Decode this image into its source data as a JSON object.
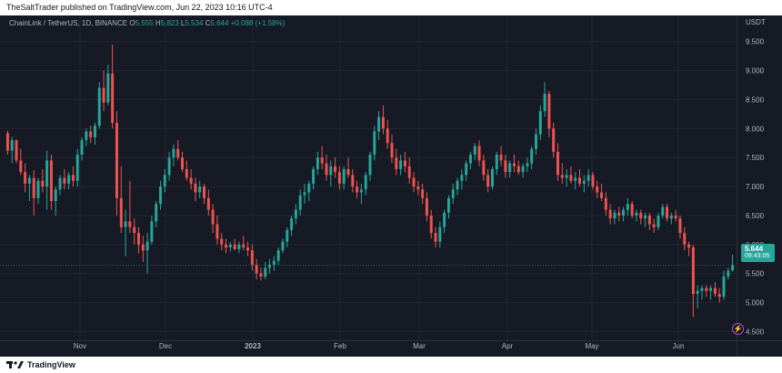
{
  "header": {
    "publisher": "TheSaltTrader published on TradingView.com, Jun 22, 2023 10:16 UTC-4"
  },
  "legend": {
    "symbol": "ChainLink / TetherUS, 1D, BINANCE",
    "o_label": "O",
    "o_value": "5.555",
    "h_label": "H",
    "h_value": "5.823",
    "l_label": "L",
    "l_value": "5.534",
    "c_label": "C",
    "c_value": "5.644",
    "change": "+0.088 (+1.58%)"
  },
  "currency": "USDT",
  "price_tag": {
    "price": "5.644",
    "countdown": "09:43:06"
  },
  "footer": {
    "brand": "TradingView"
  },
  "icons": {
    "lightning": "lightning-icon",
    "logo": "tradingview-logo-icon"
  },
  "colors": {
    "up": "#26a69a",
    "down": "#ef5350",
    "background": "#161a25",
    "grid": "#232632",
    "axis_text": "#b2b5be"
  },
  "chart_data": {
    "type": "candlestick",
    "title": "ChainLink / TetherUS, 1D, BINANCE",
    "ylim": [
      4.35,
      9.95
    ],
    "y_ticks": [
      "9.500",
      "9.000",
      "8.500",
      "8.000",
      "7.500",
      "7.000",
      "6.500",
      "6.000",
      "5.500",
      "5.000",
      "4.500"
    ],
    "x_ticks": [
      "Nov",
      "Dec",
      "2023",
      "Feb",
      "Mar",
      "Apr",
      "May",
      "Jun"
    ],
    "last_price": 5.644,
    "ohlc": [
      [
        7.92,
        7.96,
        7.55,
        7.62
      ],
      [
        7.62,
        7.86,
        7.4,
        7.8
      ],
      [
        7.8,
        7.81,
        7.4,
        7.45
      ],
      [
        7.45,
        7.65,
        7.2,
        7.25
      ],
      [
        7.25,
        7.4,
        6.9,
        7.05
      ],
      [
        7.05,
        7.2,
        6.75,
        7.15
      ],
      [
        7.15,
        7.28,
        6.5,
        6.8
      ],
      [
        6.8,
        7.15,
        6.7,
        7.1
      ],
      [
        7.1,
        7.3,
        6.9,
        7.0
      ],
      [
        7.0,
        7.62,
        6.6,
        7.45
      ],
      [
        7.45,
        7.55,
        6.6,
        6.75
      ],
      [
        6.75,
        7.0,
        6.5,
        6.95
      ],
      [
        6.95,
        7.2,
        6.85,
        7.15
      ],
      [
        7.15,
        7.3,
        6.95,
        7.05
      ],
      [
        7.05,
        7.25,
        6.95,
        7.2
      ],
      [
        7.2,
        7.35,
        7.0,
        7.1
      ],
      [
        7.1,
        7.65,
        7.0,
        7.55
      ],
      [
        7.55,
        7.85,
        7.45,
        7.8
      ],
      [
        7.8,
        8.0,
        7.7,
        7.95
      ],
      [
        7.95,
        8.05,
        7.75,
        7.85
      ],
      [
        7.85,
        8.1,
        7.72,
        8.05
      ],
      [
        8.05,
        8.8,
        8.0,
        8.7
      ],
      [
        8.7,
        9.0,
        8.3,
        8.45
      ],
      [
        8.45,
        9.1,
        8.4,
        8.95
      ],
      [
        8.95,
        9.45,
        8.0,
        8.1
      ],
      [
        8.1,
        8.3,
        6.5,
        6.8
      ],
      [
        6.8,
        7.35,
        6.2,
        6.3
      ],
      [
        6.3,
        6.6,
        5.8,
        6.4
      ],
      [
        6.4,
        7.1,
        6.2,
        6.3
      ],
      [
        6.3,
        6.45,
        6.0,
        6.2
      ],
      [
        6.2,
        6.3,
        5.85,
        6.0
      ],
      [
        6.0,
        6.15,
        5.7,
        5.9
      ],
      [
        5.9,
        6.2,
        5.5,
        6.05
      ],
      [
        6.05,
        6.5,
        6.0,
        6.4
      ],
      [
        6.4,
        6.75,
        6.3,
        6.7
      ],
      [
        6.7,
        7.1,
        6.6,
        7.0
      ],
      [
        7.0,
        7.3,
        6.9,
        7.2
      ],
      [
        7.2,
        7.6,
        7.1,
        7.5
      ],
      [
        7.5,
        7.72,
        7.35,
        7.65
      ],
      [
        7.65,
        7.8,
        7.45,
        7.5
      ],
      [
        7.5,
        7.6,
        7.25,
        7.3
      ],
      [
        7.3,
        7.45,
        7.1,
        7.15
      ],
      [
        7.15,
        7.3,
        6.95,
        7.05
      ],
      [
        7.05,
        7.15,
        6.75,
        6.9
      ],
      [
        6.9,
        7.1,
        6.8,
        7.0
      ],
      [
        7.0,
        7.05,
        6.7,
        6.8
      ],
      [
        6.8,
        6.95,
        6.5,
        6.6
      ],
      [
        6.6,
        6.7,
        6.2,
        6.35
      ],
      [
        6.35,
        6.5,
        6.0,
        6.1
      ],
      [
        6.1,
        6.2,
        5.9,
        6.0
      ],
      [
        6.0,
        6.1,
        5.85,
        5.95
      ],
      [
        5.95,
        6.05,
        5.88,
        6.0
      ],
      [
        6.0,
        6.1,
        5.9,
        5.92
      ],
      [
        5.92,
        6.05,
        5.85,
        6.0
      ],
      [
        6.0,
        6.15,
        5.9,
        5.95
      ],
      [
        5.95,
        6.05,
        5.8,
        5.9
      ],
      [
        5.9,
        6.0,
        5.55,
        5.65
      ],
      [
        5.65,
        5.75,
        5.4,
        5.5
      ],
      [
        5.5,
        5.6,
        5.38,
        5.45
      ],
      [
        5.45,
        5.7,
        5.4,
        5.6
      ],
      [
        5.6,
        5.75,
        5.5,
        5.65
      ],
      [
        5.65,
        5.8,
        5.55,
        5.72
      ],
      [
        5.72,
        5.95,
        5.65,
        5.9
      ],
      [
        5.9,
        6.1,
        5.85,
        6.05
      ],
      [
        6.05,
        6.3,
        5.95,
        6.25
      ],
      [
        6.25,
        6.5,
        6.15,
        6.45
      ],
      [
        6.45,
        6.7,
        6.35,
        6.6
      ],
      [
        6.6,
        6.95,
        6.5,
        6.85
      ],
      [
        6.85,
        7.05,
        6.7,
        6.9
      ],
      [
        6.9,
        7.1,
        6.75,
        7.05
      ],
      [
        7.05,
        7.35,
        6.95,
        7.3
      ],
      [
        7.3,
        7.6,
        7.2,
        7.5
      ],
      [
        7.5,
        7.7,
        7.3,
        7.4
      ],
      [
        7.4,
        7.55,
        7.1,
        7.2
      ],
      [
        7.2,
        7.45,
        7.0,
        7.35
      ],
      [
        7.35,
        7.5,
        7.15,
        7.25
      ],
      [
        7.25,
        7.35,
        6.95,
        7.05
      ],
      [
        7.05,
        7.35,
        6.95,
        7.3
      ],
      [
        7.3,
        7.5,
        7.15,
        7.2
      ],
      [
        7.2,
        7.3,
        6.9,
        7.0
      ],
      [
        7.0,
        7.1,
        6.8,
        6.9
      ],
      [
        6.9,
        7.05,
        6.7,
        6.95
      ],
      [
        6.95,
        7.25,
        6.85,
        7.2
      ],
      [
        7.2,
        7.6,
        7.1,
        7.55
      ],
      [
        7.55,
        8.05,
        7.45,
        7.95
      ],
      [
        7.95,
        8.3,
        7.8,
        8.2
      ],
      [
        8.2,
        8.4,
        7.9,
        8.0
      ],
      [
        8.0,
        8.15,
        7.65,
        7.75
      ],
      [
        7.75,
        7.9,
        7.4,
        7.5
      ],
      [
        7.5,
        7.65,
        7.2,
        7.3
      ],
      [
        7.3,
        7.55,
        7.2,
        7.45
      ],
      [
        7.45,
        7.6,
        7.25,
        7.35
      ],
      [
        7.35,
        7.5,
        7.05,
        7.15
      ],
      [
        7.15,
        7.25,
        6.9,
        7.0
      ],
      [
        7.0,
        7.1,
        6.85,
        6.95
      ],
      [
        6.95,
        7.05,
        6.7,
        6.8
      ],
      [
        6.8,
        6.9,
        6.4,
        6.5
      ],
      [
        6.5,
        6.6,
        6.1,
        6.2
      ],
      [
        6.2,
        6.3,
        5.95,
        6.05
      ],
      [
        6.05,
        6.4,
        5.95,
        6.3
      ],
      [
        6.3,
        6.6,
        6.2,
        6.55
      ],
      [
        6.55,
        6.85,
        6.45,
        6.8
      ],
      [
        6.8,
        7.05,
        6.7,
        6.95
      ],
      [
        6.95,
        7.15,
        6.85,
        7.1
      ],
      [
        7.1,
        7.3,
        6.95,
        7.2
      ],
      [
        7.2,
        7.45,
        7.1,
        7.4
      ],
      [
        7.4,
        7.6,
        7.3,
        7.55
      ],
      [
        7.55,
        7.75,
        7.45,
        7.7
      ],
      [
        7.7,
        7.8,
        7.35,
        7.45
      ],
      [
        7.45,
        7.55,
        7.1,
        7.2
      ],
      [
        7.2,
        7.3,
        6.9,
        7.0
      ],
      [
        7.0,
        7.35,
        6.95,
        7.3
      ],
      [
        7.3,
        7.6,
        7.2,
        7.55
      ],
      [
        7.55,
        7.7,
        7.35,
        7.45
      ],
      [
        7.45,
        7.55,
        7.15,
        7.25
      ],
      [
        7.25,
        7.45,
        7.15,
        7.4
      ],
      [
        7.4,
        7.55,
        7.25,
        7.35
      ],
      [
        7.35,
        7.45,
        7.2,
        7.25
      ],
      [
        7.25,
        7.4,
        7.15,
        7.35
      ],
      [
        7.35,
        7.5,
        7.25,
        7.4
      ],
      [
        7.4,
        7.7,
        7.3,
        7.65
      ],
      [
        7.65,
        8.0,
        7.55,
        7.9
      ],
      [
        7.9,
        8.4,
        7.8,
        8.3
      ],
      [
        8.3,
        8.8,
        8.2,
        8.6
      ],
      [
        8.6,
        8.65,
        7.85,
        8.0
      ],
      [
        8.0,
        8.1,
        7.5,
        7.6
      ],
      [
        7.6,
        7.75,
        7.1,
        7.2
      ],
      [
        7.2,
        7.4,
        7.05,
        7.15
      ],
      [
        7.15,
        7.3,
        7.0,
        7.2
      ],
      [
        7.2,
        7.35,
        7.05,
        7.1
      ],
      [
        7.1,
        7.25,
        6.95,
        7.15
      ],
      [
        7.15,
        7.3,
        7.0,
        7.05
      ],
      [
        7.05,
        7.2,
        6.9,
        7.1
      ],
      [
        7.1,
        7.3,
        7.0,
        7.2
      ],
      [
        7.2,
        7.25,
        6.95,
        7.0
      ],
      [
        7.0,
        7.1,
        6.8,
        6.9
      ],
      [
        6.9,
        7.05,
        6.75,
        6.8
      ],
      [
        6.8,
        6.9,
        6.5,
        6.6
      ],
      [
        6.6,
        6.7,
        6.35,
        6.45
      ],
      [
        6.45,
        6.6,
        6.35,
        6.55
      ],
      [
        6.55,
        6.65,
        6.4,
        6.5
      ],
      [
        6.5,
        6.65,
        6.4,
        6.6
      ],
      [
        6.6,
        6.8,
        6.5,
        6.7
      ],
      [
        6.7,
        6.75,
        6.45,
        6.5
      ],
      [
        6.5,
        6.6,
        6.4,
        6.55
      ],
      [
        6.55,
        6.6,
        6.35,
        6.45
      ],
      [
        6.45,
        6.55,
        6.3,
        6.5
      ],
      [
        6.5,
        6.55,
        6.25,
        6.35
      ],
      [
        6.35,
        6.45,
        6.2,
        6.3
      ],
      [
        6.3,
        6.55,
        6.25,
        6.5
      ],
      [
        6.5,
        6.7,
        6.45,
        6.65
      ],
      [
        6.65,
        6.7,
        6.4,
        6.45
      ],
      [
        6.45,
        6.55,
        6.35,
        6.5
      ],
      [
        6.5,
        6.6,
        6.4,
        6.45
      ],
      [
        6.45,
        6.5,
        6.1,
        6.2
      ],
      [
        6.2,
        6.3,
        5.9,
        6.0
      ],
      [
        6.0,
        6.05,
        5.8,
        5.95
      ],
      [
        5.95,
        6.0,
        4.75,
        5.15
      ],
      [
        5.15,
        5.3,
        4.9,
        5.2
      ],
      [
        5.2,
        5.3,
        5.05,
        5.25
      ],
      [
        5.25,
        5.3,
        5.1,
        5.2
      ],
      [
        5.2,
        5.3,
        5.05,
        5.25
      ],
      [
        5.25,
        5.35,
        5.1,
        5.15
      ],
      [
        5.15,
        5.25,
        5.0,
        5.1
      ],
      [
        5.1,
        5.55,
        5.05,
        5.45
      ],
      [
        5.45,
        5.6,
        5.4,
        5.55
      ],
      [
        5.555,
        5.823,
        5.534,
        5.644
      ]
    ]
  }
}
